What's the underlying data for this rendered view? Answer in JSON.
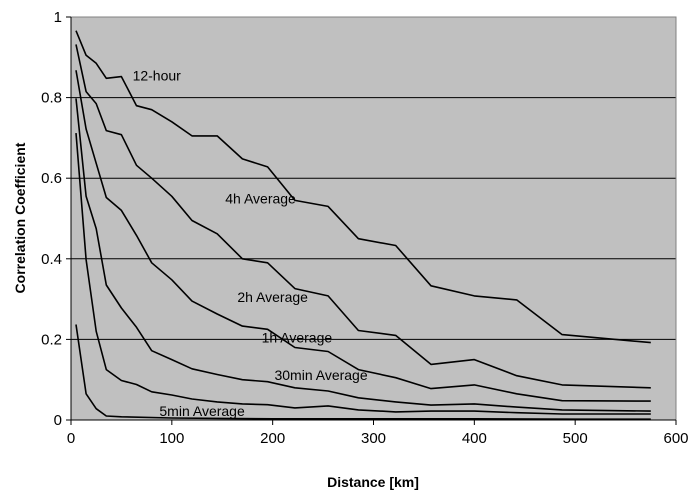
{
  "chart_data": {
    "type": "line",
    "xlabel": "Distance  [km]",
    "ylabel": "Correlation Coefficient",
    "xlim": [
      0,
      600
    ],
    "ylim": [
      0,
      1
    ],
    "xticks": [
      "0",
      "100",
      "200",
      "300",
      "400",
      "500",
      "600"
    ],
    "yticks": [
      "0",
      "0.2",
      "0.4",
      "0.6",
      "0.8",
      "1"
    ],
    "grid": "horizontal",
    "background_color": "#c0c0c0",
    "line_color": "#000000",
    "series": [
      {
        "name": "12-hour",
        "points": [
          [
            5,
            0.966
          ],
          [
            15,
            0.905
          ],
          [
            25,
            0.885
          ],
          [
            35,
            0.848
          ],
          [
            50,
            0.852
          ],
          [
            65,
            0.78
          ],
          [
            80,
            0.77
          ],
          [
            100,
            0.74
          ],
          [
            120,
            0.705
          ],
          [
            145,
            0.705
          ],
          [
            170,
            0.648
          ],
          [
            195,
            0.628
          ],
          [
            222,
            0.545
          ],
          [
            255,
            0.53
          ],
          [
            285,
            0.45
          ],
          [
            322,
            0.433
          ],
          [
            357,
            0.333
          ],
          [
            400,
            0.308
          ],
          [
            442,
            0.298
          ],
          [
            487,
            0.212
          ],
          [
            575,
            0.192
          ]
        ]
      },
      {
        "name": "4h Average",
        "points": [
          [
            5,
            0.932
          ],
          [
            15,
            0.815
          ],
          [
            25,
            0.785
          ],
          [
            35,
            0.718
          ],
          [
            50,
            0.708
          ],
          [
            65,
            0.632
          ],
          [
            80,
            0.6
          ],
          [
            100,
            0.555
          ],
          [
            120,
            0.495
          ],
          [
            145,
            0.462
          ],
          [
            170,
            0.4
          ],
          [
            195,
            0.39
          ],
          [
            222,
            0.326
          ],
          [
            255,
            0.308
          ],
          [
            285,
            0.222
          ],
          [
            322,
            0.21
          ],
          [
            357,
            0.138
          ],
          [
            400,
            0.15
          ],
          [
            442,
            0.11
          ],
          [
            487,
            0.087
          ],
          [
            575,
            0.08
          ]
        ]
      },
      {
        "name": "2h Average",
        "points": [
          [
            5,
            0.868
          ],
          [
            15,
            0.722
          ],
          [
            25,
            0.637
          ],
          [
            35,
            0.552
          ],
          [
            50,
            0.52
          ],
          [
            65,
            0.458
          ],
          [
            80,
            0.39
          ],
          [
            100,
            0.348
          ],
          [
            120,
            0.295
          ],
          [
            145,
            0.263
          ],
          [
            170,
            0.233
          ],
          [
            195,
            0.225
          ],
          [
            222,
            0.18
          ],
          [
            255,
            0.17
          ],
          [
            285,
            0.125
          ],
          [
            322,
            0.105
          ],
          [
            357,
            0.078
          ],
          [
            400,
            0.087
          ],
          [
            442,
            0.065
          ],
          [
            487,
            0.048
          ],
          [
            575,
            0.047
          ]
        ]
      },
      {
        "name": "1h Average",
        "points": [
          [
            5,
            0.798
          ],
          [
            15,
            0.555
          ],
          [
            25,
            0.475
          ],
          [
            35,
            0.335
          ],
          [
            50,
            0.278
          ],
          [
            65,
            0.23
          ],
          [
            80,
            0.172
          ],
          [
            100,
            0.15
          ],
          [
            120,
            0.127
          ],
          [
            145,
            0.113
          ],
          [
            170,
            0.1
          ],
          [
            195,
            0.095
          ],
          [
            222,
            0.08
          ],
          [
            255,
            0.072
          ],
          [
            285,
            0.055
          ],
          [
            322,
            0.045
          ],
          [
            357,
            0.037
          ],
          [
            400,
            0.04
          ],
          [
            442,
            0.032
          ],
          [
            487,
            0.025
          ],
          [
            575,
            0.022
          ]
        ]
      },
      {
        "name": "30min Average",
        "points": [
          [
            5,
            0.712
          ],
          [
            15,
            0.398
          ],
          [
            25,
            0.22
          ],
          [
            35,
            0.125
          ],
          [
            50,
            0.098
          ],
          [
            65,
            0.088
          ],
          [
            80,
            0.07
          ],
          [
            100,
            0.062
          ],
          [
            120,
            0.052
          ],
          [
            145,
            0.045
          ],
          [
            170,
            0.04
          ],
          [
            195,
            0.038
          ],
          [
            222,
            0.03
          ],
          [
            255,
            0.035
          ],
          [
            285,
            0.025
          ],
          [
            322,
            0.02
          ],
          [
            357,
            0.022
          ],
          [
            400,
            0.022
          ],
          [
            442,
            0.018
          ],
          [
            487,
            0.015
          ],
          [
            575,
            0.015
          ]
        ]
      },
      {
        "name": "5min Average",
        "points": [
          [
            5,
            0.237
          ],
          [
            15,
            0.065
          ],
          [
            25,
            0.028
          ],
          [
            35,
            0.01
          ],
          [
            50,
            0.008
          ],
          [
            100,
            0.005
          ],
          [
            150,
            0.004
          ],
          [
            200,
            0.003
          ],
          [
            300,
            0.003
          ],
          [
            400,
            0.003
          ],
          [
            500,
            0.002
          ],
          [
            575,
            0.002
          ]
        ]
      }
    ],
    "annotations": [
      {
        "text": "12-hour",
        "x": 85,
        "y": 0.855
      },
      {
        "text": "4h Average",
        "x": 188,
        "y": 0.55
      },
      {
        "text": "2h Average",
        "x": 200,
        "y": 0.305
      },
      {
        "text": "1h Average",
        "x": 224,
        "y": 0.205
      },
      {
        "text": "30min Average",
        "x": 248,
        "y": 0.112
      },
      {
        "text": "5min Average",
        "x": 130,
        "y": 0.022
      }
    ]
  }
}
